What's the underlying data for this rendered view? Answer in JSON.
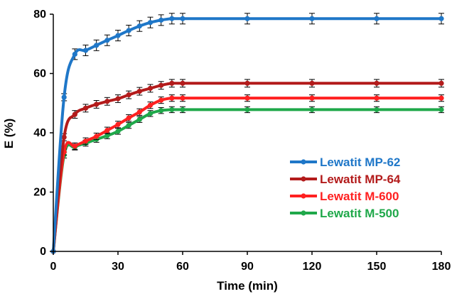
{
  "chart_data": {
    "type": "line",
    "title": "",
    "xlabel": "Time (min)",
    "ylabel": "E (%)",
    "xlim": [
      0,
      180
    ],
    "ylim": [
      0,
      80
    ],
    "xticks": [
      0,
      30,
      60,
      90,
      120,
      150,
      180
    ],
    "yticks": [
      0,
      20,
      40,
      60,
      80
    ],
    "grid": false,
    "legend_position": "center-right",
    "series": [
      {
        "name": "Lewatit MP-62",
        "color": "#1f77c8",
        "x": [
          0,
          5,
          10,
          15,
          20,
          25,
          30,
          35,
          40,
          45,
          50,
          55,
          60,
          90,
          120,
          150,
          180
        ],
        "y": [
          0,
          52,
          66.5,
          67.8,
          69.5,
          71.2,
          72.8,
          74.5,
          76.0,
          77.2,
          78.0,
          78.5,
          78.5,
          78.5,
          78.5,
          78.5,
          78.5
        ],
        "err": [
          0,
          1.2,
          1.8,
          1.8,
          1.8,
          1.8,
          1.8,
          1.8,
          1.8,
          1.8,
          1.8,
          1.8,
          1.8,
          1.8,
          1.8,
          1.8,
          1.8
        ]
      },
      {
        "name": "Lewatit MP-64",
        "color": "#b31b1b",
        "x": [
          0,
          5,
          10,
          15,
          20,
          25,
          30,
          35,
          40,
          45,
          50,
          55,
          60,
          90,
          120,
          150,
          180
        ],
        "y": [
          0,
          38.5,
          46.2,
          48.3,
          49.6,
          50.6,
          51.5,
          52.8,
          54.0,
          55.0,
          56.0,
          56.7,
          56.7,
          56.7,
          56.7,
          56.7,
          56.7
        ],
        "err": [
          0,
          1.2,
          1.3,
          1.3,
          1.3,
          1.3,
          1.3,
          1.3,
          1.3,
          1.3,
          1.3,
          1.3,
          1.3,
          1.3,
          1.3,
          1.3,
          1.3
        ]
      },
      {
        "name": "Lewatit M-600",
        "color": "#ff2020",
        "x": [
          0,
          5,
          10,
          15,
          20,
          25,
          30,
          35,
          40,
          45,
          50,
          55,
          60,
          90,
          120,
          150,
          180
        ],
        "y": [
          0,
          33.5,
          35.5,
          37.2,
          38.8,
          40.8,
          42.8,
          45.0,
          47.0,
          49.3,
          51.0,
          51.7,
          51.7,
          51.7,
          51.7,
          51.7,
          51.7
        ],
        "err": [
          0,
          1.0,
          1.1,
          1.1,
          1.1,
          1.1,
          1.1,
          1.1,
          1.1,
          1.1,
          1.1,
          1.1,
          1.1,
          1.1,
          1.1,
          1.1,
          1.1
        ]
      },
      {
        "name": "Lewatit M-500",
        "color": "#1fa84a",
        "x": [
          0,
          5,
          10,
          15,
          20,
          25,
          30,
          35,
          40,
          45,
          50,
          55,
          60,
          90,
          120,
          150,
          180
        ],
        "y": [
          0,
          32.5,
          35.2,
          36.5,
          37.8,
          39.0,
          40.5,
          42.5,
          44.5,
          46.5,
          47.5,
          47.8,
          47.8,
          47.8,
          47.8,
          47.8,
          47.8
        ],
        "err": [
          0,
          1.0,
          1.0,
          1.0,
          1.0,
          1.0,
          1.0,
          1.0,
          1.0,
          1.0,
          1.0,
          1.0,
          1.0,
          1.0,
          1.0,
          1.0,
          1.0
        ]
      }
    ]
  }
}
